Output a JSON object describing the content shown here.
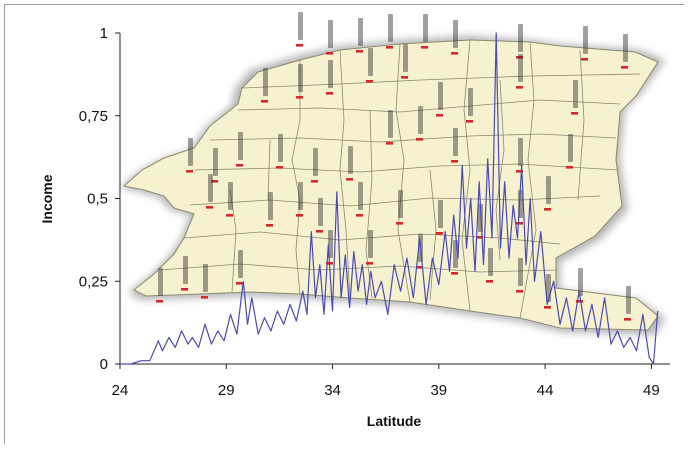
{
  "chart_data": {
    "type": "line",
    "title": "",
    "xlabel": "Latitude",
    "ylabel": "Income",
    "xlim": [
      24,
      49.5
    ],
    "ylim": [
      0,
      1
    ],
    "x_ticks": [
      "24",
      "29",
      "34",
      "39",
      "44",
      "49"
    ],
    "y_ticks": [
      "0",
      "0,25",
      "0,5",
      "0,75",
      "1"
    ],
    "grid": false,
    "legend": "none",
    "series_color": "#4a4ab8",
    "map_fill": "#f6f2cf",
    "map_stroke": "#8a8a70",
    "series": [
      {
        "x": [
          24.0,
          24.5,
          25.0,
          25.4,
          25.8,
          26.0,
          26.3,
          26.6,
          26.9,
          27.2,
          27.4,
          27.7,
          28.0,
          28.3,
          28.6,
          28.9,
          29.2,
          29.5,
          29.8,
          30.0,
          30.2,
          30.5,
          30.8,
          31.1,
          31.4,
          31.7,
          32.0,
          32.3,
          32.6,
          32.8,
          33.0,
          33.2,
          33.4,
          33.6,
          33.8,
          34.0,
          34.2,
          34.4,
          34.6,
          34.8,
          35.0,
          35.2,
          35.4,
          35.6,
          35.8,
          36.0,
          36.3,
          36.6,
          36.9,
          37.2,
          37.5,
          37.8,
          38.1,
          38.4,
          38.7,
          39.0,
          39.3,
          39.5,
          39.7,
          39.9,
          40.1,
          40.3,
          40.5,
          40.7,
          40.9,
          41.1,
          41.3,
          41.5,
          41.7,
          41.9,
          42.1,
          42.3,
          42.5,
          42.7,
          42.9,
          43.1,
          43.3,
          43.5,
          43.8,
          44.1,
          44.4,
          44.7,
          45.0,
          45.3,
          45.6,
          45.9,
          46.2,
          46.5,
          46.8,
          47.1,
          47.4,
          47.7,
          48.0,
          48.3,
          48.6,
          48.9,
          49.1,
          49.3
        ],
        "values": [
          0.0,
          0.0,
          0.01,
          0.01,
          0.07,
          0.04,
          0.08,
          0.05,
          0.1,
          0.06,
          0.08,
          0.05,
          0.12,
          0.06,
          0.1,
          0.07,
          0.15,
          0.09,
          0.25,
          0.12,
          0.2,
          0.09,
          0.14,
          0.1,
          0.16,
          0.12,
          0.18,
          0.13,
          0.22,
          0.15,
          0.4,
          0.2,
          0.3,
          0.15,
          0.36,
          0.16,
          0.52,
          0.2,
          0.33,
          0.17,
          0.34,
          0.22,
          0.3,
          0.18,
          0.28,
          0.2,
          0.25,
          0.15,
          0.3,
          0.22,
          0.32,
          0.2,
          0.38,
          0.18,
          0.32,
          0.24,
          0.4,
          0.28,
          0.45,
          0.32,
          0.6,
          0.35,
          0.5,
          0.28,
          0.55,
          0.3,
          0.62,
          0.38,
          1.0,
          0.35,
          0.55,
          0.32,
          0.48,
          0.38,
          0.6,
          0.3,
          0.5,
          0.25,
          0.4,
          0.18,
          0.25,
          0.12,
          0.2,
          0.1,
          0.22,
          0.1,
          0.18,
          0.08,
          0.2,
          0.06,
          0.1,
          0.05,
          0.08,
          0.04,
          0.15,
          0.02,
          0.0,
          0.16
        ]
      }
    ]
  }
}
